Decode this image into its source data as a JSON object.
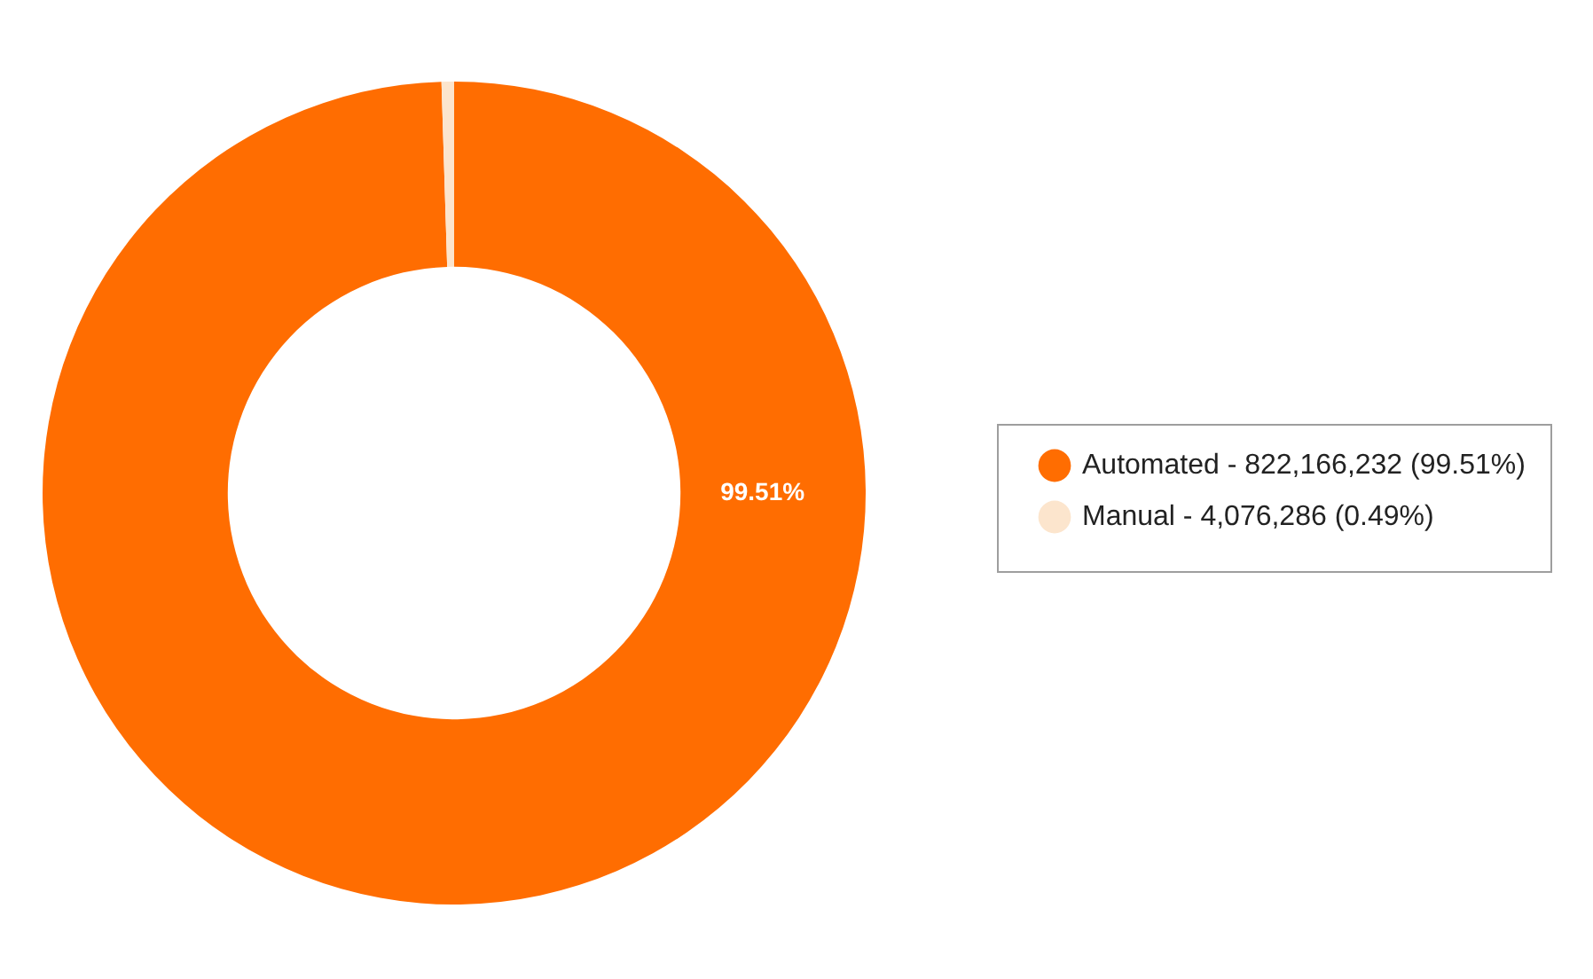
{
  "chart_data": {
    "type": "donut",
    "categories": [
      "Automated - 822,166,232 (99.51%)",
      "Manual - 4,076,286 (0.49%)"
    ],
    "values": [
      99.51,
      0.49
    ],
    "colors": [
      "#ff6d01",
      "#fce5cd"
    ],
    "value_labels": [
      "99.51%",
      null
    ],
    "legend": "right"
  }
}
